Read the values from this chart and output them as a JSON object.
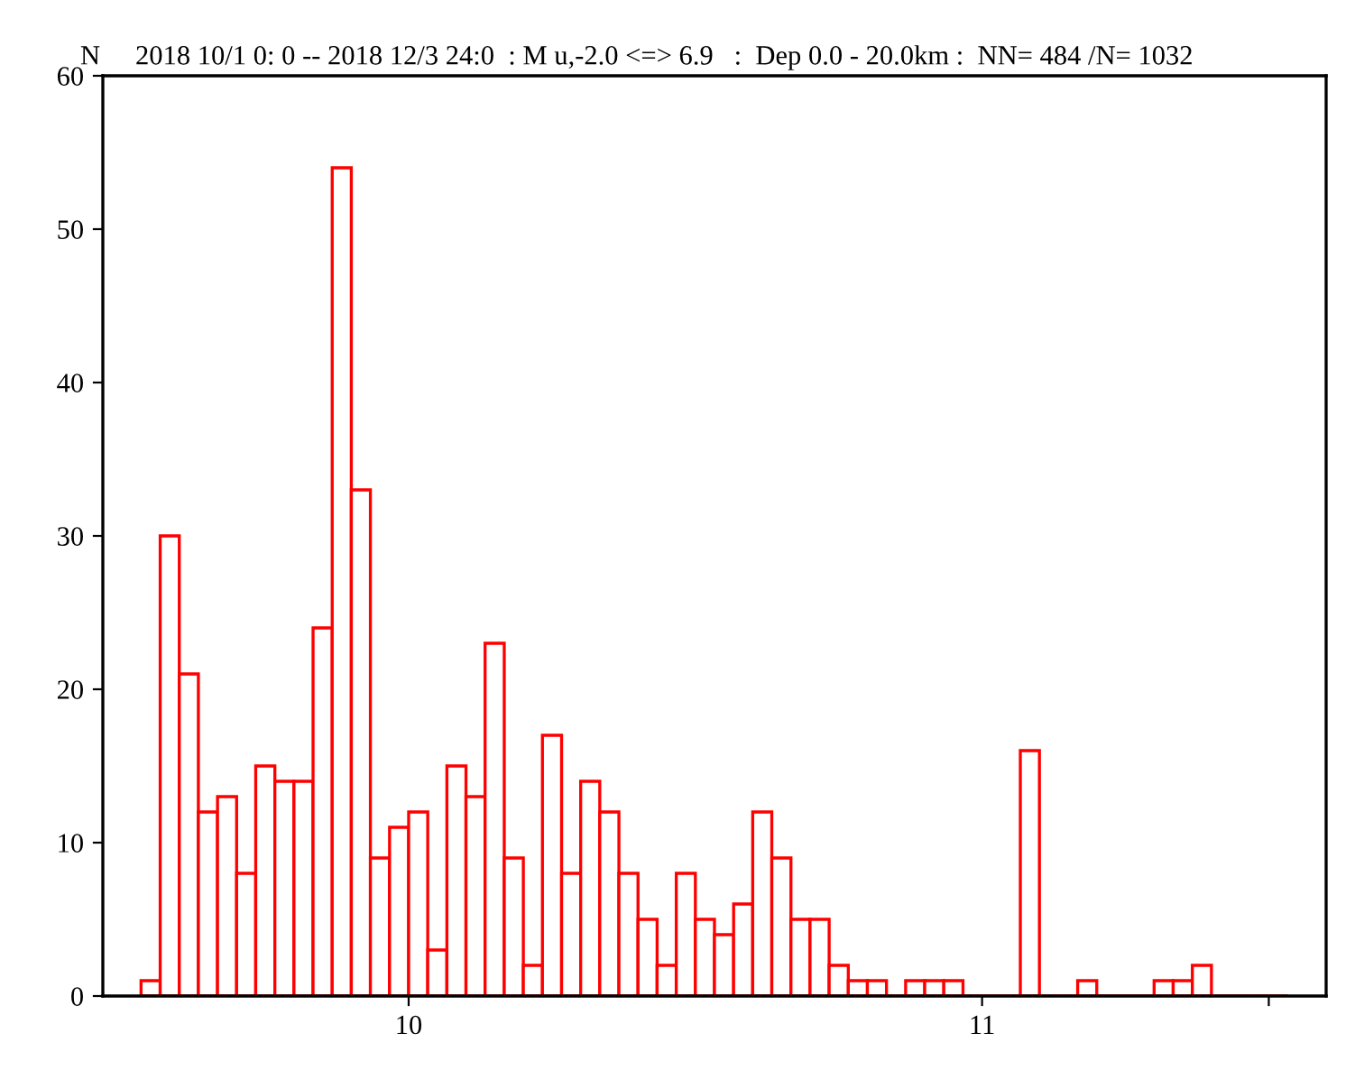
{
  "chart_data": {
    "type": "histogram",
    "title": "2018 10/1 0: 0 -- 2018 12/3 24:0  : M u,-2.0 <=> 6.9   :  Dep 0.0 - 20.0km :  NN= 484 /N= 1032",
    "ylabel": "N",
    "color": "#ff0000",
    "bins": [
      9.5333,
      9.5667,
      9.6,
      9.6333,
      9.6667,
      9.7,
      9.7333,
      9.7667,
      9.8,
      9.8333,
      9.8667,
      9.9,
      9.9333,
      9.9667,
      10.0,
      10.0333,
      10.0667,
      10.1,
      10.1333,
      10.1667,
      10.2,
      10.2333,
      10.2667,
      10.3,
      10.3333,
      10.3667,
      10.4,
      10.4333,
      10.4667,
      10.5,
      10.5333,
      10.5667,
      10.6,
      10.6333,
      10.6667,
      10.7,
      10.7333,
      10.7667,
      10.8,
      10.8333,
      10.8667,
      10.9,
      10.9333,
      10.9667,
      11.0,
      11.0333,
      11.0667,
      11.1,
      11.1333,
      11.1667,
      11.2,
      11.2333,
      11.2667,
      11.3,
      11.3333,
      11.3667,
      11.4,
      11.4333,
      11.4667,
      11.5,
      11.5333
    ],
    "values": [
      1,
      30,
      21,
      12,
      13,
      8,
      15,
      14,
      14,
      24,
      54,
      33,
      9,
      11,
      12,
      3,
      15,
      13,
      23,
      9,
      2,
      17,
      8,
      14,
      12,
      8,
      5,
      2,
      8,
      5,
      4,
      6,
      12,
      9,
      5,
      5,
      2,
      1,
      1,
      0,
      1,
      1,
      1,
      0,
      0,
      0,
      16,
      0,
      0,
      1,
      0,
      0,
      0,
      1,
      1,
      2,
      0,
      0,
      0,
      0
    ],
    "xlim": [
      9.4667,
      11.6
    ],
    "xticks": [
      10,
      11,
      {
        "value": 11.5,
        "label": null
      }
    ],
    "ylim": [
      0,
      60
    ],
    "yticks": [
      0,
      10,
      20,
      30,
      40,
      50,
      60
    ],
    "grid": false,
    "legend": false
  }
}
